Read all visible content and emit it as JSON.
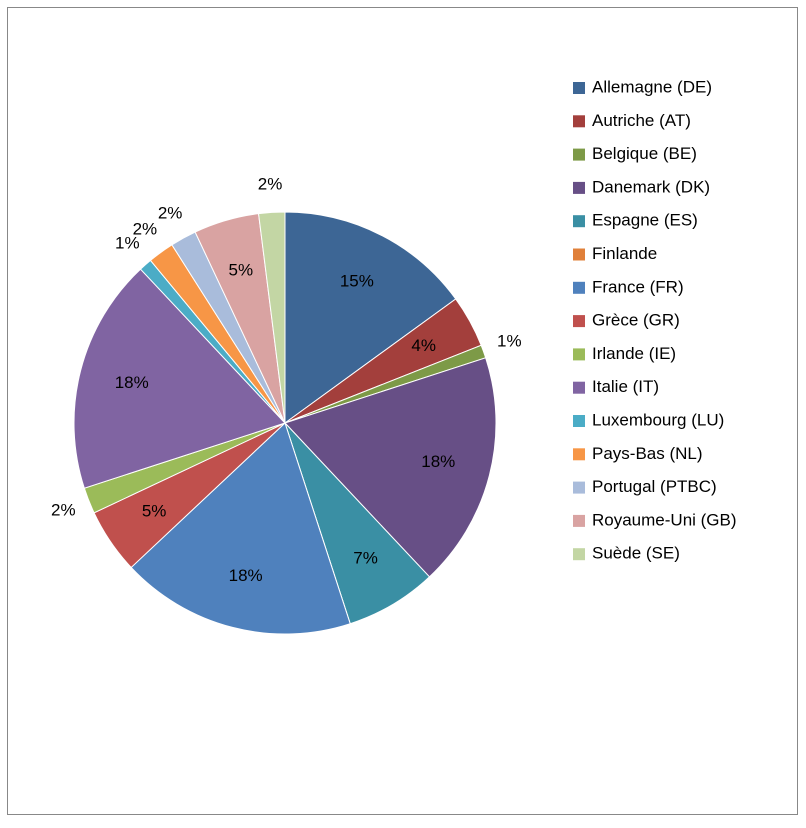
{
  "chart_data": {
    "type": "pie",
    "categories": [
      "Allemagne (DE)",
      "Autriche (AT)",
      "Belgique (BE)",
      "Danemark (DK)",
      "Espagne (ES)",
      "Finlande",
      "France (FR)",
      "Grèce (GR)",
      "Irlande (IE)",
      "Italie (IT)",
      "Luxembourg (LU)",
      "Pays-Bas (NL)",
      "Portugal (PTBC)",
      "Royaume-Uni (GB)",
      "Suède (SE)"
    ],
    "values": [
      15,
      4,
      1,
      18,
      7,
      0,
      18,
      5,
      2,
      18,
      1,
      2,
      2,
      5,
      2
    ],
    "value_labels": [
      "15%",
      "4%",
      "1%",
      "18%",
      "7%",
      null,
      "18%",
      "5%",
      "2%",
      "18%",
      "1%",
      "2%",
      "2%",
      "5%",
      "2%"
    ],
    "colors": [
      "#3d6695",
      "#a33f3c",
      "#7d9a47",
      "#674f86",
      "#3a8fa4",
      "#e0803a",
      "#4f81bd",
      "#c0504d",
      "#9bbb59",
      "#8064a2",
      "#4bacc6",
      "#f79646",
      "#a9bcdb",
      "#d9a3a2",
      "#c3d6a4"
    ],
    "legend": "right"
  }
}
